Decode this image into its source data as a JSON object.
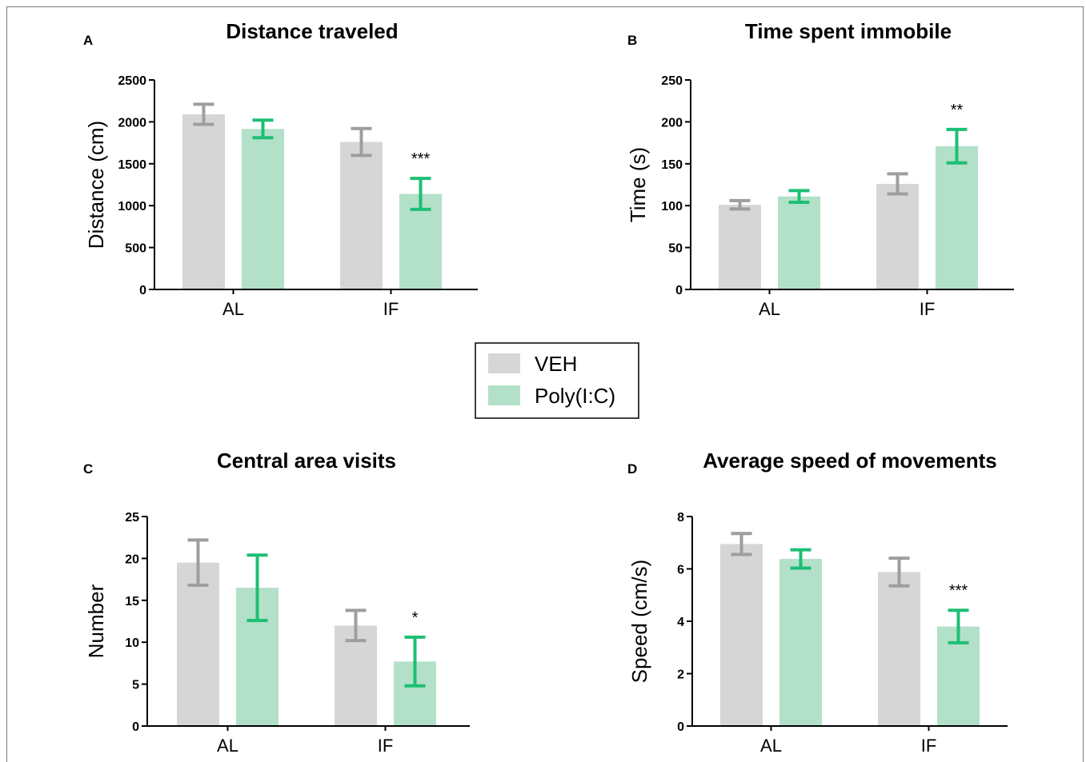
{
  "legend": {
    "items": [
      {
        "label": "VEH",
        "color": "#d6d6d6"
      },
      {
        "label": "Poly(I:C)",
        "color": "#b3e0c9"
      }
    ]
  },
  "colors": {
    "veh_bar": "#d6d6d6",
    "veh_error": "#9e9e9e",
    "polyic_bar": "#b3e0c9",
    "polyic_error": "#1dbf74",
    "axis": "#000000"
  },
  "chart_data": [
    {
      "panel": "A",
      "type": "bar",
      "title": "Distance traveled",
      "ylabel": "Distance (cm)",
      "categories": [
        "AL",
        "IF"
      ],
      "ylim": [
        0,
        2500
      ],
      "yticks": [
        0,
        500,
        1000,
        1500,
        2000,
        2500
      ],
      "series": [
        {
          "name": "VEH",
          "values": [
            2090,
            1760
          ],
          "error": [
            120,
            160
          ]
        },
        {
          "name": "Poly(I:C)",
          "values": [
            1915,
            1140
          ],
          "error": [
            105,
            185
          ]
        }
      ],
      "annotations": [
        {
          "category": "IF",
          "series": "Poly(I:C)",
          "text": "***"
        }
      ]
    },
    {
      "panel": "B",
      "type": "bar",
      "title": "Time spent immobile",
      "ylabel": "Time (s)",
      "categories": [
        "AL",
        "IF"
      ],
      "ylim": [
        0,
        250
      ],
      "yticks": [
        0,
        50,
        100,
        150,
        200,
        250
      ],
      "series": [
        {
          "name": "VEH",
          "values": [
            101,
            126
          ],
          "error": [
            5,
            12
          ]
        },
        {
          "name": "Poly(I:C)",
          "values": [
            111,
            171
          ],
          "error": [
            7,
            20
          ]
        }
      ],
      "annotations": [
        {
          "category": "IF",
          "series": "Poly(I:C)",
          "text": "**"
        }
      ]
    },
    {
      "panel": "C",
      "type": "bar",
      "title": "Central area visits",
      "ylabel": "Number",
      "categories": [
        "AL",
        "IF"
      ],
      "ylim": [
        0,
        25
      ],
      "yticks": [
        0,
        5,
        10,
        15,
        20,
        25
      ],
      "series": [
        {
          "name": "VEH",
          "values": [
            19.5,
            12
          ],
          "error": [
            2.7,
            1.8
          ]
        },
        {
          "name": "Poly(I:C)",
          "values": [
            16.5,
            7.7
          ],
          "error": [
            3.9,
            2.9
          ]
        }
      ],
      "annotations": [
        {
          "category": "IF",
          "series": "Poly(I:C)",
          "text": "*"
        }
      ]
    },
    {
      "panel": "D",
      "type": "bar",
      "title": "Average speed of movements",
      "ylabel": "Speed (cm/s)",
      "categories": [
        "AL",
        "IF"
      ],
      "ylim": [
        0,
        8
      ],
      "yticks": [
        0,
        2,
        4,
        6,
        8
      ],
      "series": [
        {
          "name": "VEH",
          "values": [
            6.95,
            5.88
          ],
          "error": [
            0.4,
            0.53
          ]
        },
        {
          "name": "Poly(I:C)",
          "values": [
            6.38,
            3.8
          ],
          "error": [
            0.35,
            0.62
          ]
        }
      ],
      "annotations": [
        {
          "category": "IF",
          "series": "Poly(I:C)",
          "text": "***"
        }
      ]
    }
  ]
}
